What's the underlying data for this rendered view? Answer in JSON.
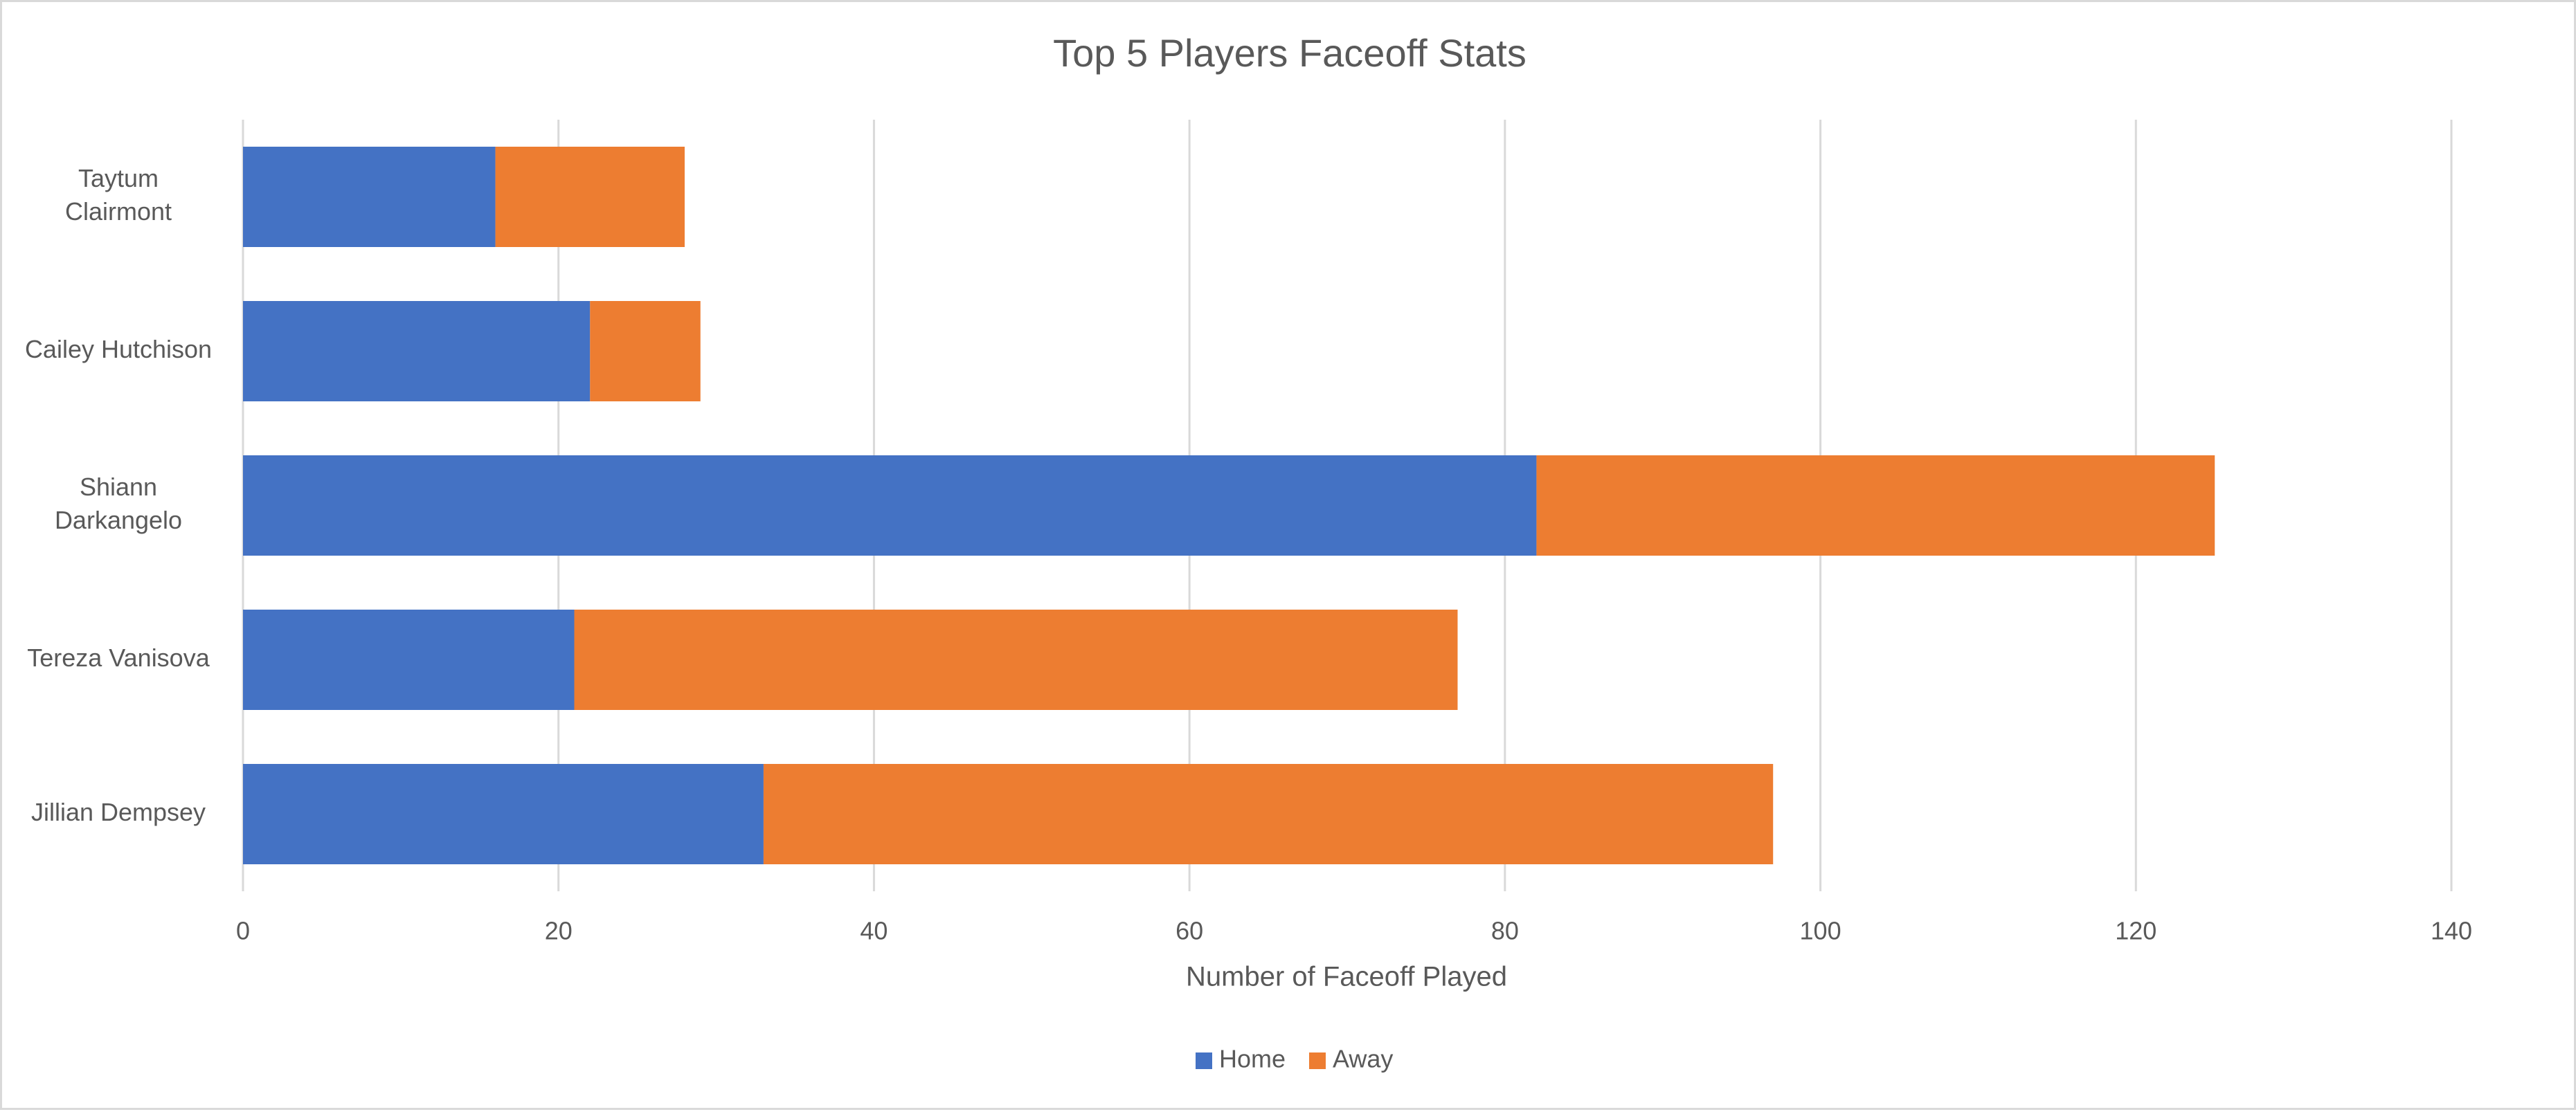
{
  "chart_data": {
    "type": "bar",
    "orientation": "horizontal",
    "stacked": true,
    "title": "Top 5 Players Faceoff Stats",
    "xlabel": "Number of Faceoff Played",
    "ylabel": "",
    "categories": [
      "Taytum Clairmont",
      "Cailey Hutchison",
      "Shiann Darkangelo",
      "Tereza Vanisova",
      "Jillian Dempsey"
    ],
    "category_label_lines": [
      [
        "Taytum",
        "Clairmont"
      ],
      [
        "Cailey Hutchison"
      ],
      [
        "Shiann",
        "Darkangelo"
      ],
      [
        "Tereza Vanisova"
      ],
      [
        "Jillian Dempsey"
      ]
    ],
    "series": [
      {
        "name": "Home",
        "color": "#4472c4",
        "values": [
          16,
          22,
          82,
          21,
          33
        ]
      },
      {
        "name": "Away",
        "color": "#ed7d31",
        "values": [
          12,
          7,
          43,
          56,
          64
        ]
      }
    ],
    "xlim": [
      0,
      140
    ],
    "xticks": [
      0,
      20,
      40,
      60,
      80,
      100,
      120,
      140
    ],
    "xtick_labels": [
      "0",
      "20",
      "40",
      "60",
      "80",
      "100",
      "120",
      "140"
    ],
    "grid": true,
    "legend_position": "bottom"
  }
}
